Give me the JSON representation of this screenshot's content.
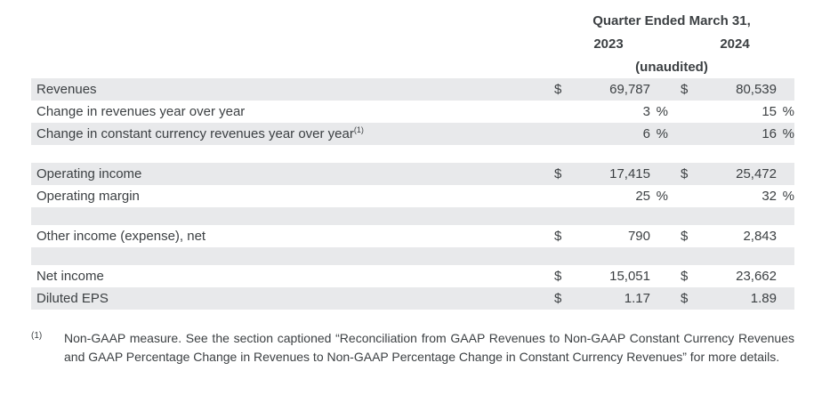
{
  "header": {
    "title": "Quarter Ended March 31,",
    "year_left": "2023",
    "year_right": "2024",
    "unaudited": "(unaudited)"
  },
  "table": {
    "rows": [
      {
        "label": "Revenues",
        "bg": "gray",
        "cur1": "$",
        "val1": "69,787",
        "pct1": "",
        "cur2": "$",
        "val2": "80,539",
        "pct2": ""
      },
      {
        "label": "Change in revenues year over year",
        "bg": "white",
        "cur1": "",
        "val1": "3",
        "pct1": "%",
        "cur2": "",
        "val2": "15",
        "pct2": "%"
      },
      {
        "label": "Change in constant currency revenues year over year",
        "sup": "(1)",
        "bg": "gray",
        "cur1": "",
        "val1": "6",
        "pct1": "%",
        "cur2": "",
        "val2": "16",
        "pct2": "%"
      },
      {
        "spacer": true,
        "bg": "white"
      },
      {
        "label": "Operating income",
        "bg": "gray",
        "cur1": "$",
        "val1": "17,415",
        "pct1": "",
        "cur2": "$",
        "val2": "25,472",
        "pct2": ""
      },
      {
        "label": "Operating margin",
        "bg": "white",
        "cur1": "",
        "val1": "25",
        "pct1": "%",
        "cur2": "",
        "val2": "32",
        "pct2": "%"
      },
      {
        "spacer": true,
        "bg": "gray"
      },
      {
        "label": "Other income (expense), net",
        "bg": "white",
        "cur1": "$",
        "val1": "790",
        "pct1": "",
        "cur2": "$",
        "val2": "2,843",
        "pct2": ""
      },
      {
        "spacer": true,
        "bg": "gray"
      },
      {
        "label": "Net income",
        "bg": "white",
        "cur1": "$",
        "val1": "15,051",
        "pct1": "",
        "cur2": "$",
        "val2": "23,662",
        "pct2": ""
      },
      {
        "label": "Diluted EPS",
        "bg": "gray",
        "cur1": "$",
        "val1": "1.17",
        "pct1": "",
        "cur2": "$",
        "val2": "1.89",
        "pct2": ""
      }
    ]
  },
  "footnote": {
    "marker": "(1)",
    "text": "Non-GAAP measure. See the section captioned “Reconciliation from GAAP Revenues to Non-GAAP Constant Currency Revenues and GAAP Percentage Change in Revenues to Non-GAAP Percentage Change in Constant Currency Revenues” for more details."
  },
  "colors": {
    "row_shade": "#e8e9eb",
    "text": "#3c4043",
    "background": "#ffffff"
  }
}
